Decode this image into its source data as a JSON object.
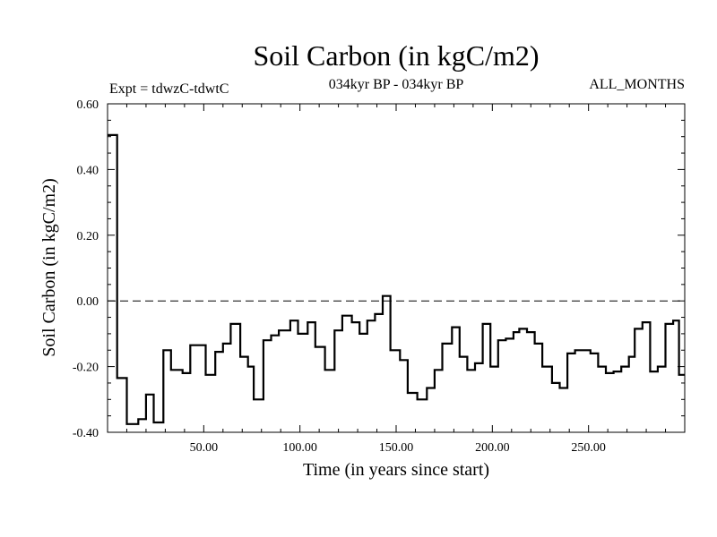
{
  "chart_data": {
    "type": "line",
    "title": "Soil Carbon (in kgC/m2)",
    "subtitle_left": "Expt = tdwzC-tdwtC",
    "subtitle_center": "034kyr BP - 034kyr BP",
    "subtitle_right": "ALL_MONTHS",
    "xlabel": "Time (in years since start)",
    "ylabel": "Soil Carbon (in kgC/m2)",
    "xlim": [
      0,
      300
    ],
    "ylim": [
      -0.4,
      0.6
    ],
    "x_ticks": [
      50,
      100,
      150,
      200,
      250
    ],
    "x_tick_labels": [
      "50.00",
      "100.00",
      "150.00",
      "200.00",
      "250.00"
    ],
    "y_ticks": [
      -0.4,
      -0.2,
      0.0,
      0.2,
      0.4,
      0.6
    ],
    "y_tick_labels": [
      "-0.40",
      "-0.20",
      "0.00",
      "0.20",
      "0.40",
      "0.60"
    ],
    "reference_line": 0.0,
    "grid": false,
    "series": [
      {
        "color": "#000000",
        "step_segments": [
          {
            "x0": 0,
            "x1": 5,
            "y": 0.505
          },
          {
            "x0": 5,
            "x1": 10,
            "y": -0.235
          },
          {
            "x0": 10,
            "x1": 16,
            "y": -0.375
          },
          {
            "x0": 16,
            "x1": 20,
            "y": -0.36
          },
          {
            "x0": 20,
            "x1": 24,
            "y": -0.285
          },
          {
            "x0": 24,
            "x1": 29,
            "y": -0.37
          },
          {
            "x0": 29,
            "x1": 33,
            "y": -0.15
          },
          {
            "x0": 33,
            "x1": 39,
            "y": -0.21
          },
          {
            "x0": 39,
            "x1": 43,
            "y": -0.22
          },
          {
            "x0": 43,
            "x1": 51,
            "y": -0.135
          },
          {
            "x0": 51,
            "x1": 56,
            "y": -0.225
          },
          {
            "x0": 56,
            "x1": 60,
            "y": -0.155
          },
          {
            "x0": 60,
            "x1": 64,
            "y": -0.13
          },
          {
            "x0": 64,
            "x1": 69,
            "y": -0.07
          },
          {
            "x0": 69,
            "x1": 73,
            "y": -0.17
          },
          {
            "x0": 73,
            "x1": 76,
            "y": -0.2
          },
          {
            "x0": 76,
            "x1": 81,
            "y": -0.3
          },
          {
            "x0": 81,
            "x1": 85,
            "y": -0.12
          },
          {
            "x0": 85,
            "x1": 89,
            "y": -0.105
          },
          {
            "x0": 89,
            "x1": 95,
            "y": -0.09
          },
          {
            "x0": 95,
            "x1": 99,
            "y": -0.06
          },
          {
            "x0": 99,
            "x1": 104,
            "y": -0.1
          },
          {
            "x0": 104,
            "x1": 108,
            "y": -0.065
          },
          {
            "x0": 108,
            "x1": 113,
            "y": -0.14
          },
          {
            "x0": 113,
            "x1": 118,
            "y": -0.21
          },
          {
            "x0": 118,
            "x1": 122,
            "y": -0.09
          },
          {
            "x0": 122,
            "x1": 127,
            "y": -0.045
          },
          {
            "x0": 127,
            "x1": 131,
            "y": -0.065
          },
          {
            "x0": 131,
            "x1": 135,
            "y": -0.1
          },
          {
            "x0": 135,
            "x1": 139,
            "y": -0.06
          },
          {
            "x0": 139,
            "x1": 143,
            "y": -0.04
          },
          {
            "x0": 143,
            "x1": 147,
            "y": 0.015
          },
          {
            "x0": 147,
            "x1": 152,
            "y": -0.15
          },
          {
            "x0": 152,
            "x1": 156,
            "y": -0.18
          },
          {
            "x0": 156,
            "x1": 161,
            "y": -0.28
          },
          {
            "x0": 161,
            "x1": 166,
            "y": -0.3
          },
          {
            "x0": 166,
            "x1": 170,
            "y": -0.265
          },
          {
            "x0": 170,
            "x1": 174,
            "y": -0.21
          },
          {
            "x0": 174,
            "x1": 179,
            "y": -0.13
          },
          {
            "x0": 179,
            "x1": 183,
            "y": -0.08
          },
          {
            "x0": 183,
            "x1": 187,
            "y": -0.17
          },
          {
            "x0": 187,
            "x1": 191,
            "y": -0.21
          },
          {
            "x0": 191,
            "x1": 195,
            "y": -0.19
          },
          {
            "x0": 195,
            "x1": 199,
            "y": -0.07
          },
          {
            "x0": 199,
            "x1": 203,
            "y": -0.2
          },
          {
            "x0": 203,
            "x1": 207,
            "y": -0.12
          },
          {
            "x0": 207,
            "x1": 211,
            "y": -0.115
          },
          {
            "x0": 211,
            "x1": 214,
            "y": -0.095
          },
          {
            "x0": 214,
            "x1": 218,
            "y": -0.085
          },
          {
            "x0": 218,
            "x1": 222,
            "y": -0.095
          },
          {
            "x0": 222,
            "x1": 226,
            "y": -0.13
          },
          {
            "x0": 226,
            "x1": 231,
            "y": -0.2
          },
          {
            "x0": 231,
            "x1": 235,
            "y": -0.25
          },
          {
            "x0": 235,
            "x1": 239,
            "y": -0.265
          },
          {
            "x0": 239,
            "x1": 243,
            "y": -0.16
          },
          {
            "x0": 243,
            "x1": 247,
            "y": -0.15
          },
          {
            "x0": 247,
            "x1": 251,
            "y": -0.15
          },
          {
            "x0": 251,
            "x1": 255,
            "y": -0.16
          },
          {
            "x0": 255,
            "x1": 259,
            "y": -0.2
          },
          {
            "x0": 259,
            "x1": 263,
            "y": -0.22
          },
          {
            "x0": 263,
            "x1": 267,
            "y": -0.215
          },
          {
            "x0": 267,
            "x1": 271,
            "y": -0.2
          },
          {
            "x0": 271,
            "x1": 274,
            "y": -0.17
          },
          {
            "x0": 274,
            "x1": 278,
            "y": -0.085
          },
          {
            "x0": 278,
            "x1": 282,
            "y": -0.065
          },
          {
            "x0": 282,
            "x1": 286,
            "y": -0.215
          },
          {
            "x0": 286,
            "x1": 290,
            "y": -0.2
          },
          {
            "x0": 290,
            "x1": 294,
            "y": -0.07
          },
          {
            "x0": 294,
            "x1": 297,
            "y": -0.06
          },
          {
            "x0": 297,
            "x1": 300,
            "y": -0.225
          }
        ]
      }
    ]
  }
}
